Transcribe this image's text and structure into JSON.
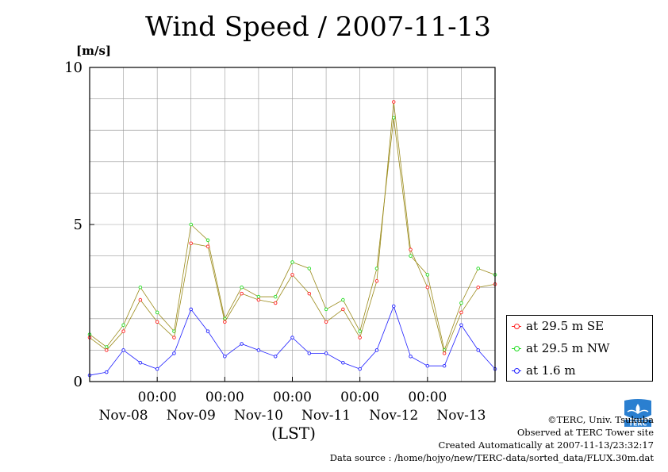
{
  "title": "Wind Speed / 2007-11-13",
  "unit": "[m/s]",
  "x_axis_caption": "(LST)",
  "credits": {
    "line1": "©TERC, Univ. Tsukuba",
    "line2": "Observed at TERC Tower site",
    "line3": "Created Automatically at 2007-11-13/23:32:17",
    "line4": "Data source : /home/hojyo/new/TERC-data/sorted_data/FLUX.30m.dat"
  },
  "logo_text": "TERC",
  "colors": {
    "se": "#ff2020",
    "nw": "#22dd22",
    "low": "#2020ff",
    "connector": "#9a8a1a",
    "grid": "#999999"
  },
  "chart_data": {
    "type": "line",
    "title": "Wind Speed / 2007-11-13",
    "ylabel": "[m/s]",
    "xlabel": "(LST)",
    "ylim": [
      0,
      10
    ],
    "yticks": [
      "0",
      "5",
      "10"
    ],
    "xlim_days": [
      0,
      6
    ],
    "day_ticks": [
      "Nov-08",
      "Nov-09",
      "Nov-10",
      "Nov-11",
      "Nov-12",
      "Nov-13"
    ],
    "time_ticks": [
      "00:00",
      "00:00",
      "00:00",
      "00:00",
      "00:00"
    ],
    "grid": true,
    "legend_position": "right",
    "series": [
      {
        "name": "at 29.5 m SE",
        "color": "#ff2020",
        "x_days": [
          0.0,
          0.25,
          0.5,
          0.75,
          1.0,
          1.25,
          1.5,
          1.75,
          2.0,
          2.25,
          2.5,
          2.75,
          3.0,
          3.25,
          3.5,
          3.75,
          4.0,
          4.25,
          4.5,
          4.75,
          5.0,
          5.25,
          5.5,
          5.75,
          6.0
        ],
        "values": [
          1.4,
          1.0,
          1.6,
          2.6,
          1.9,
          1.4,
          4.4,
          4.3,
          1.9,
          2.8,
          2.6,
          2.5,
          3.4,
          2.8,
          1.9,
          2.3,
          1.4,
          3.2,
          8.9,
          4.2,
          3.0,
          0.9,
          2.2,
          3.0,
          3.1
        ]
      },
      {
        "name": "at 29.5 m NW",
        "color": "#22dd22",
        "x_days": [
          0.0,
          0.25,
          0.5,
          0.75,
          1.0,
          1.25,
          1.5,
          1.75,
          2.0,
          2.25,
          2.5,
          2.75,
          3.0,
          3.25,
          3.5,
          3.75,
          4.0,
          4.25,
          4.5,
          4.75,
          5.0,
          5.25,
          5.5,
          5.75,
          6.0
        ],
        "values": [
          1.5,
          1.1,
          1.8,
          3.0,
          2.2,
          1.6,
          5.0,
          4.5,
          2.0,
          3.0,
          2.7,
          2.7,
          3.8,
          3.6,
          2.3,
          2.6,
          1.6,
          3.6,
          8.4,
          4.0,
          3.4,
          1.0,
          2.5,
          3.6,
          3.4
        ]
      },
      {
        "name": "at 1.6 m",
        "color": "#2020ff",
        "x_days": [
          0.0,
          0.25,
          0.5,
          0.75,
          1.0,
          1.25,
          1.5,
          1.75,
          2.0,
          2.25,
          2.5,
          2.75,
          3.0,
          3.25,
          3.5,
          3.75,
          4.0,
          4.25,
          4.5,
          4.75,
          5.0,
          5.25,
          5.5,
          5.75,
          6.0
        ],
        "values": [
          0.2,
          0.3,
          1.0,
          0.6,
          0.4,
          0.9,
          2.3,
          1.6,
          0.8,
          1.2,
          1.0,
          0.8,
          1.4,
          0.9,
          0.9,
          0.6,
          0.4,
          1.0,
          2.4,
          0.8,
          0.5,
          0.5,
          1.8,
          1.0,
          0.4
        ]
      }
    ]
  }
}
